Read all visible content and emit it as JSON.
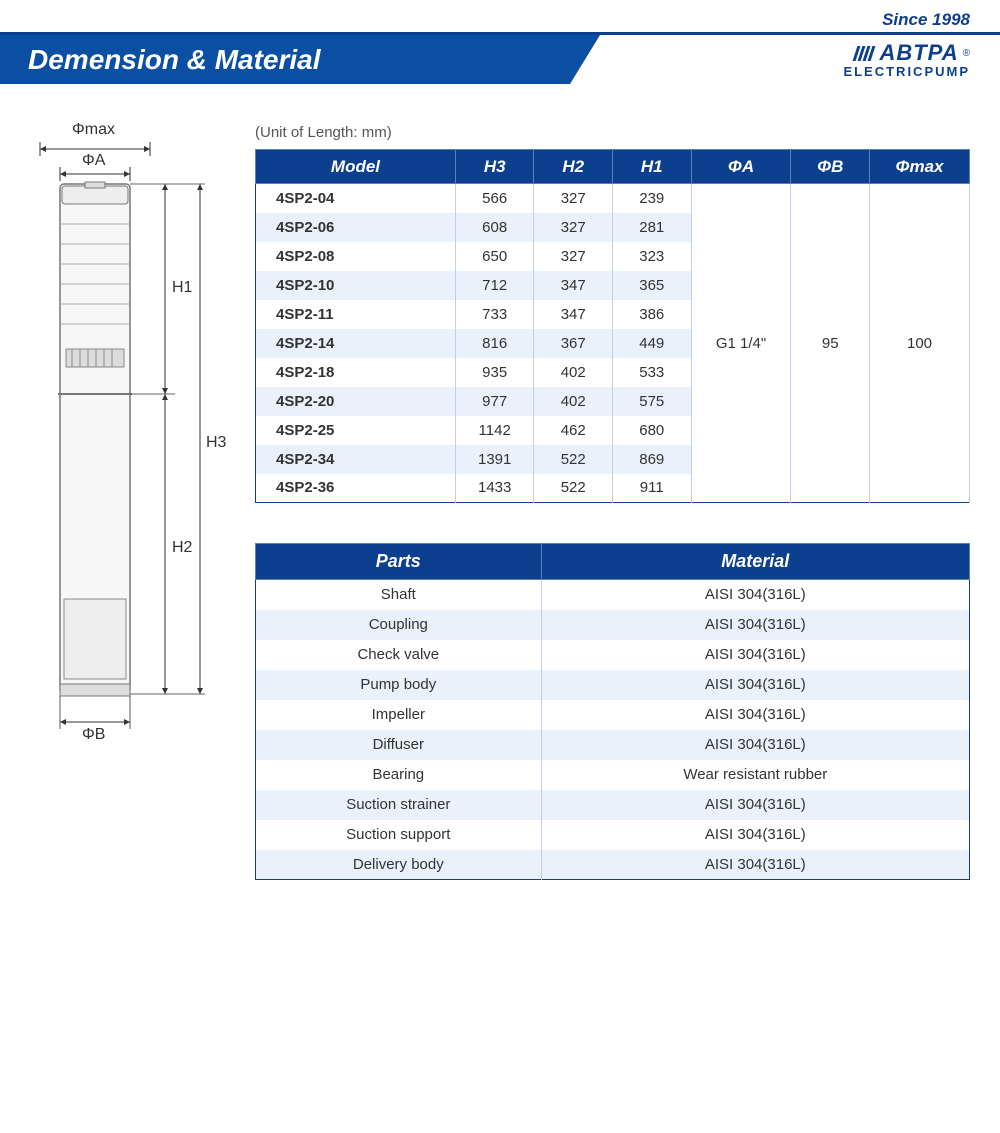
{
  "header": {
    "since": "Since 1998",
    "title": "Demension & Material",
    "brand": "ABTPA",
    "brand_sub": "ELECTRICPUMP"
  },
  "colors": {
    "brand_blue": "#0d3f8f",
    "banner_blue": "#0a4fa4",
    "row_alt": "#eaf1fa",
    "border_light": "#bcd0e8"
  },
  "diagram": {
    "labels": {
      "phimax": "Φmax",
      "phiA": "ΦA",
      "phiB": "ΦB",
      "h1": "H1",
      "h2": "H2",
      "h3": "H3"
    }
  },
  "dim_table": {
    "unit_note": "(Unit of Length: mm)",
    "columns": [
      "Model",
      "H3",
      "H2",
      "H1",
      "ΦA",
      "ΦB",
      "Φmax"
    ],
    "merged": {
      "phiA": "G1 1/4\"",
      "phiB": "95",
      "phimax": "100"
    },
    "rows": [
      {
        "model": "4SP2-04",
        "h3": "566",
        "h2": "327",
        "h1": "239"
      },
      {
        "model": "4SP2-06",
        "h3": "608",
        "h2": "327",
        "h1": "281"
      },
      {
        "model": "4SP2-08",
        "h3": "650",
        "h2": "327",
        "h1": "323"
      },
      {
        "model": "4SP2-10",
        "h3": "712",
        "h2": "347",
        "h1": "365"
      },
      {
        "model": "4SP2-11",
        "h3": "733",
        "h2": "347",
        "h1": "386"
      },
      {
        "model": "4SP2-14",
        "h3": "816",
        "h2": "367",
        "h1": "449"
      },
      {
        "model": "4SP2-18",
        "h3": "935",
        "h2": "402",
        "h1": "533"
      },
      {
        "model": "4SP2-20",
        "h3": "977",
        "h2": "402",
        "h1": "575"
      },
      {
        "model": "4SP2-25",
        "h3": "1142",
        "h2": "462",
        "h1": "680"
      },
      {
        "model": "4SP2-34",
        "h3": "1391",
        "h2": "522",
        "h1": "869"
      },
      {
        "model": "4SP2-36",
        "h3": "1433",
        "h2": "522",
        "h1": "911"
      }
    ]
  },
  "mat_table": {
    "columns": [
      "Parts",
      "Material"
    ],
    "rows": [
      {
        "part": "Shaft",
        "material": "AISI 304(316L)"
      },
      {
        "part": "Coupling",
        "material": "AISI 304(316L)"
      },
      {
        "part": "Check valve",
        "material": "AISI 304(316L)"
      },
      {
        "part": "Pump body",
        "material": "AISI 304(316L)"
      },
      {
        "part": "Impeller",
        "material": "AISI 304(316L)"
      },
      {
        "part": "Diffuser",
        "material": "AISI 304(316L)"
      },
      {
        "part": "Bearing",
        "material": "Wear resistant rubber"
      },
      {
        "part": "Suction strainer",
        "material": "AISI 304(316L)"
      },
      {
        "part": "Suction support",
        "material": "AISI 304(316L)"
      },
      {
        "part": "Delivery body",
        "material": "AISI 304(316L)"
      }
    ]
  }
}
